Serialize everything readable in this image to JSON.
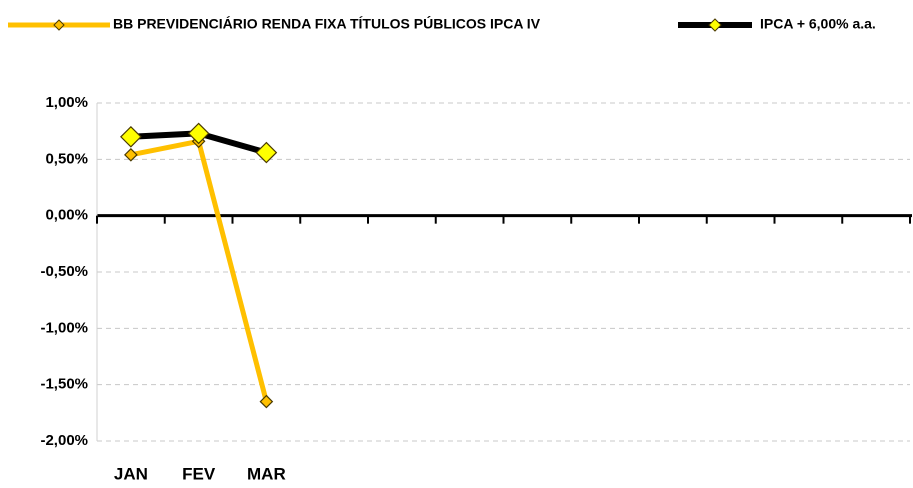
{
  "chart_data": {
    "type": "line",
    "categories": [
      "JAN",
      "FEV",
      "MAR",
      null,
      null,
      null,
      null,
      null,
      null,
      null,
      null,
      null
    ],
    "series": [
      {
        "name": "BB PREVIDENCIÁRIO RENDA FIXA TÍTULOS PÚBLICOS IPCA IV",
        "color": "#ffc000",
        "marker_color": "#ffc000",
        "values": [
          0.54,
          0.66,
          -1.65,
          null,
          null,
          null,
          null,
          null,
          null,
          null,
          null,
          null
        ]
      },
      {
        "name": "IPCA + 6,00% a.a.",
        "color": "#000000",
        "marker_color": "#ffff00",
        "values": [
          0.7,
          0.73,
          0.56,
          null,
          null,
          null,
          null,
          null,
          null,
          null,
          null,
          null
        ]
      }
    ],
    "ylim": [
      -2,
      1
    ],
    "yticks": [
      {
        "value": -2,
        "label": "-2,00%"
      },
      {
        "value": -1.5,
        "label": "-1,50%"
      },
      {
        "value": -1,
        "label": "-1,00%"
      },
      {
        "value": -0.5,
        "label": "-0,50%"
      },
      {
        "value": 0,
        "label": "0,00%"
      },
      {
        "value": 0.5,
        "label": "0,50%"
      },
      {
        "value": 1,
        "label": "1,00%"
      }
    ],
    "grid": true,
    "legend": "top"
  }
}
